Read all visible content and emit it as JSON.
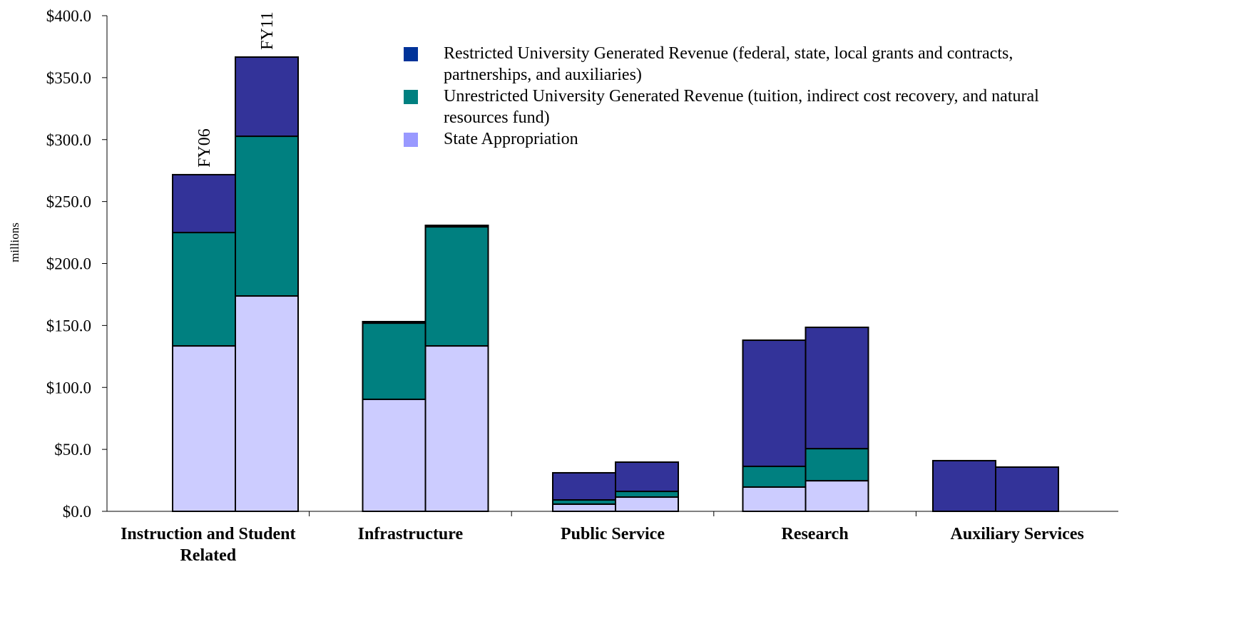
{
  "chart_data": {
    "type": "stacked-grouped-bar",
    "categories": [
      "Instruction and Student Related",
      "Infrastructure",
      "Public Service",
      "Research",
      "Auxiliary Services"
    ],
    "bar_labels": [
      "FY06",
      "FY11"
    ],
    "y_label": "millions",
    "ylim": [
      0,
      400
    ],
    "yticks": [
      {
        "value": 0,
        "label": "$0.0"
      },
      {
        "value": 50,
        "label": "$50.0"
      },
      {
        "value": 100,
        "label": "$100.0"
      },
      {
        "value": 150,
        "label": "$150.0"
      },
      {
        "value": 200,
        "label": "$200.0"
      },
      {
        "value": 250,
        "label": "$250.0"
      },
      {
        "value": 300,
        "label": "$300.0"
      },
      {
        "value": 350,
        "label": "$350.0"
      },
      {
        "value": 400,
        "label": "$400.0"
      }
    ],
    "series": [
      {
        "name": "State Appropriation",
        "color": "#ccccff",
        "legend_color": "#9999ff",
        "values": [
          [
            133.5,
            173.8
          ],
          [
            90.4,
            133.5
          ],
          [
            5.8,
            11.5
          ],
          [
            19.6,
            24.7
          ],
          [
            0,
            0
          ]
        ]
      },
      {
        "name": "Unrestricted University Generated Revenue (tuition, indirect cost recovery, and natural resources fund)",
        "color": "#008080",
        "legend_color": "#008080",
        "values": [
          [
            91.5,
            128.9
          ],
          [
            61.5,
            96.1
          ],
          [
            3.4,
            4.6
          ],
          [
            16.7,
            25.9
          ],
          [
            0,
            0
          ]
        ]
      },
      {
        "name": "Restricted University Generated Revenue (federal, state, local grants and contracts, partnerships, and  auxiliaries)",
        "color": "#333399",
        "legend_color": "#003399",
        "values": [
          [
            46.7,
            63.9
          ],
          [
            1.2,
            1.2
          ],
          [
            21.9,
            23.6
          ],
          [
            101.8,
            97.9
          ],
          [
            40.9,
            35.7
          ]
        ]
      }
    ],
    "legend_order": "reverse"
  }
}
